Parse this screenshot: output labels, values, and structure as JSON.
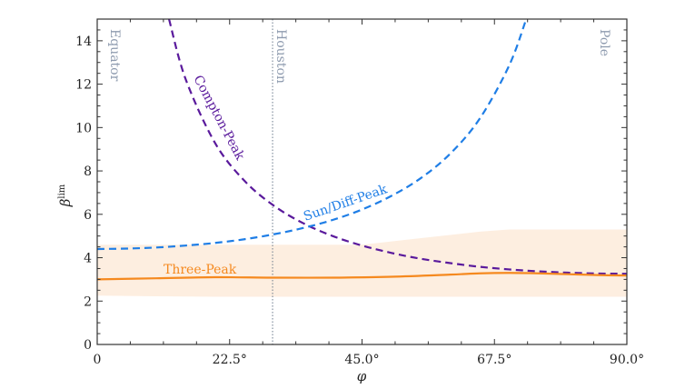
{
  "chart_data": {
    "type": "line",
    "xlabel": "φ",
    "ylabel": "β",
    "ylabel_superscript": "lim",
    "xlim": [
      0,
      90
    ],
    "ylim": [
      0,
      15
    ],
    "x_ticks": [
      0,
      22.5,
      45.0,
      67.5,
      90.0
    ],
    "x_tick_labels": [
      "0",
      "22.5°",
      "45.0°",
      "67.5°",
      "90.0°"
    ],
    "y_ticks": [
      0,
      2,
      4,
      6,
      8,
      10,
      12,
      14
    ],
    "y_tick_labels": [
      "0",
      "2",
      "4",
      "6",
      "8",
      "10",
      "12",
      "14"
    ],
    "grid": false,
    "vertical_lines": [
      {
        "label": "Equator",
        "x": 0,
        "drawn": false
      },
      {
        "label": "Houston",
        "x": 29.8,
        "drawn": true
      },
      {
        "label": "Pole",
        "x": 90,
        "drawn": false
      }
    ],
    "series": [
      {
        "name": "Compton-Peak",
        "style": "dashed",
        "color": "#5a1a9c",
        "x": [
          12.2,
          15,
          20,
          25,
          30,
          35,
          40,
          45,
          50,
          55,
          60,
          65,
          70,
          75,
          80,
          85,
          90
        ],
        "y": [
          15.0,
          12.25,
          9.3,
          7.55,
          6.4,
          5.59,
          5.0,
          4.56,
          4.22,
          3.95,
          3.75,
          3.58,
          3.46,
          3.37,
          3.31,
          3.27,
          3.26
        ]
      },
      {
        "name": "Sun/Diff-Peak",
        "style": "dashed",
        "color": "#1f7ee6",
        "x": [
          0,
          5,
          10,
          15,
          20,
          25,
          30,
          35,
          40,
          45,
          50,
          55,
          60,
          65,
          70,
          72.9
        ],
        "y": [
          4.4,
          4.42,
          4.47,
          4.56,
          4.68,
          4.85,
          5.08,
          5.37,
          5.74,
          6.22,
          6.85,
          7.67,
          8.8,
          10.41,
          12.86,
          15.0
        ]
      },
      {
        "name": "Three-Peak",
        "style": "solid",
        "color": "#f5891f",
        "x": [
          0,
          10,
          20,
          30,
          40,
          50,
          60,
          65,
          70,
          75,
          80,
          85,
          90
        ],
        "y": [
          3.0,
          3.05,
          3.1,
          3.08,
          3.08,
          3.12,
          3.22,
          3.28,
          3.3,
          3.28,
          3.24,
          3.2,
          3.18
        ],
        "band": {
          "color": "#fdeee0",
          "x": [
            0,
            10,
            20,
            30,
            40,
            45,
            50,
            55,
            60,
            65,
            70,
            80,
            90
          ],
          "upper": [
            4.6,
            4.6,
            4.6,
            4.6,
            4.6,
            4.6,
            4.75,
            4.9,
            5.05,
            5.2,
            5.3,
            5.3,
            5.3
          ],
          "lower": [
            2.25,
            2.22,
            2.2,
            2.2,
            2.2,
            2.2,
            2.2,
            2.2,
            2.2,
            2.2,
            2.2,
            2.2,
            2.2
          ]
        }
      }
    ]
  }
}
